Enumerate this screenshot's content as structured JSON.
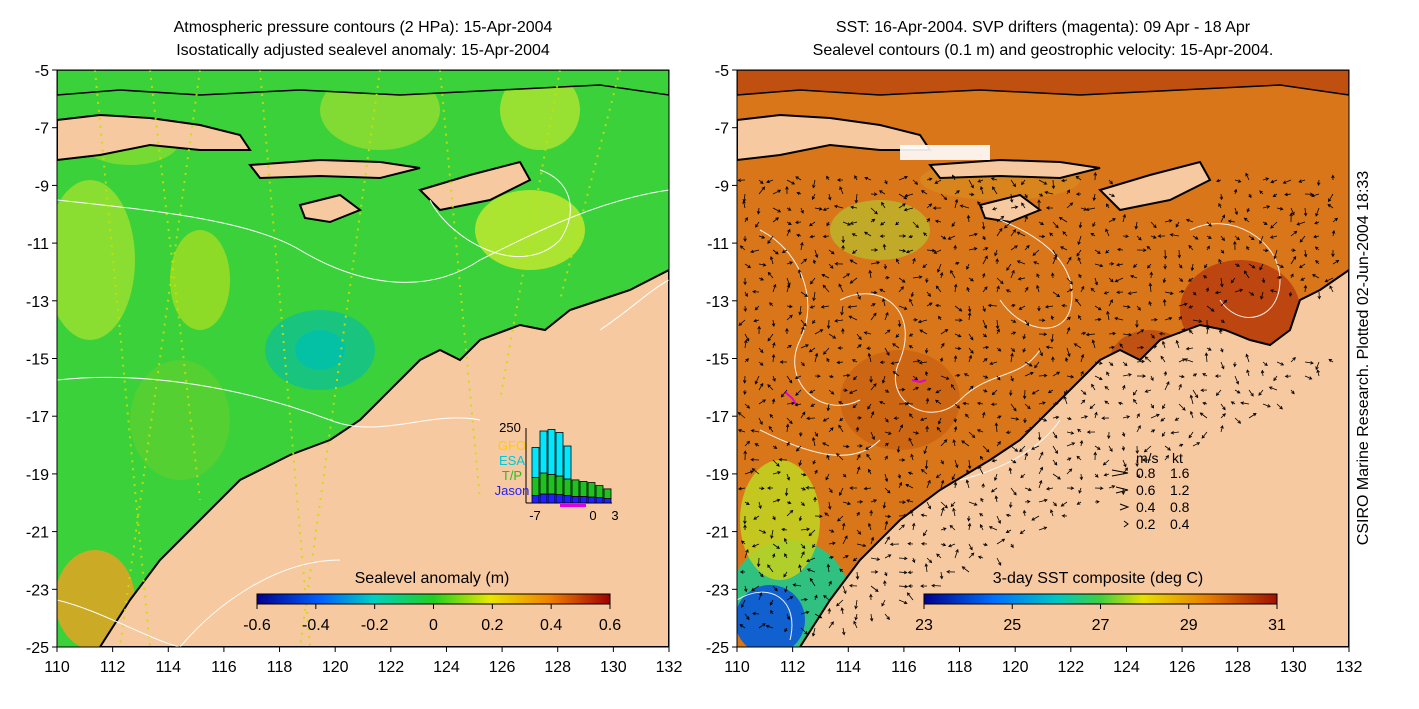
{
  "left_panel": {
    "title_line1": "Atmospheric pressure contours (2 HPa): 15-Apr-2004",
    "title_line2": "Isostatically adjusted sealevel anomaly: 15-Apr-2004",
    "colorbar_label": "Sealevel anomaly (m)",
    "colorbar_ticks": [
      "-0.6",
      "-0.4",
      "-0.2",
      "0",
      "0.2",
      "0.4",
      "0.6"
    ],
    "inset": {
      "ymax_label": "250",
      "legend": [
        {
          "label": "GFO",
          "color": "#ffcc00"
        },
        {
          "label": "ESA",
          "color": "#00c8d8"
        },
        {
          "label": "T/P",
          "color": "#20c020"
        },
        {
          "label": "Jason",
          "color": "#2020ff"
        }
      ],
      "x_ticks": [
        "-7",
        "0",
        "3"
      ],
      "bars": {
        "jason": [
          25,
          30,
          30,
          28,
          25,
          22,
          22,
          20,
          18,
          15
        ],
        "tp": [
          60,
          70,
          65,
          62,
          55,
          55,
          50,
          48,
          40,
          32
        ],
        "esa": [
          100,
          140,
          150,
          145,
          110,
          0,
          0,
          0,
          0,
          0
        ],
        "gfo": [
          0,
          0,
          0,
          0,
          0,
          0,
          0,
          0,
          0,
          0
        ]
      }
    }
  },
  "right_panel": {
    "title_line1": "SST: 16-Apr-2004. SVP drifters (magenta): 09 Apr - 18 Apr",
    "title_line2": "Sealevel contours (0.1 m) and geostrophic velocity: 15-Apr-2004.",
    "colorbar_label": "3-day SST composite (deg C)",
    "colorbar_ticks": [
      "23",
      "25",
      "27",
      "29",
      "31"
    ],
    "velocity_legend": {
      "header_ms": "m/s",
      "header_kt": "kt",
      "rows": [
        {
          "ms": "0.8",
          "kt": "1.6"
        },
        {
          "ms": "0.6",
          "kt": "1.2"
        },
        {
          "ms": "0.4",
          "kt": "0.8"
        },
        {
          "ms": "0.2",
          "kt": "0.4"
        }
      ]
    }
  },
  "axes": {
    "y_ticks": [
      "-5",
      "-7",
      "-9",
      "-11",
      "-13",
      "-15",
      "-17",
      "-19",
      "-21",
      "-23",
      "-25"
    ],
    "x_ticks": [
      "110",
      "112",
      "114",
      "116",
      "118",
      "120",
      "122",
      "124",
      "126",
      "128",
      "130",
      "132"
    ]
  },
  "credit": "CSIRO Marine Research. Plotted 02-Jun-2004 18:33",
  "colors": {
    "land": "#f7c9a0",
    "ocean_anomaly": "#3ad13a",
    "sst_warm": "#d9761a",
    "drifter": "#e000e0"
  }
}
